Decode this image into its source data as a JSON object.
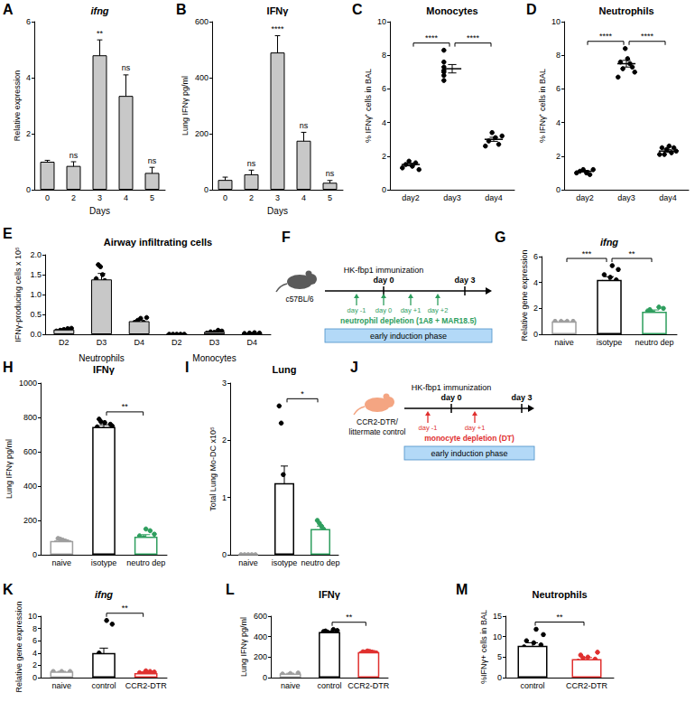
{
  "chart_data": [
    {
      "panel": "A",
      "type": "bar",
      "title": "ifng",
      "x_label": "Days",
      "y_label": "Relative expression",
      "categories": [
        "0",
        "2",
        "3",
        "4",
        "5"
      ],
      "values": [
        1.0,
        0.85,
        4.8,
        3.35,
        0.6
      ],
      "errors": [
        0.05,
        0.15,
        0.55,
        0.75,
        0.2
      ],
      "color": "#c8c8c8",
      "ylim": [
        0,
        6
      ],
      "yticks": [
        0,
        2,
        4,
        6
      ],
      "annotations": [
        {
          "category": "2",
          "text": "ns"
        },
        {
          "category": "3",
          "text": "**"
        },
        {
          "category": "4",
          "text": "ns"
        },
        {
          "category": "5",
          "text": "ns"
        }
      ]
    },
    {
      "panel": "B",
      "type": "bar",
      "title": "IFNγ",
      "x_label": "Days",
      "y_label": "Lung IFNγ pg/ml",
      "categories": [
        "0",
        "2",
        "3",
        "4",
        "5"
      ],
      "values": [
        35,
        55,
        490,
        175,
        25
      ],
      "errors": [
        10,
        15,
        60,
        30,
        8
      ],
      "color": "#c8c8c8",
      "ylim": [
        0,
        600
      ],
      "yticks": [
        0,
        200,
        400,
        600
      ],
      "annotations": [
        {
          "category": "2",
          "text": "ns"
        },
        {
          "category": "3",
          "text": "****"
        },
        {
          "category": "4",
          "text": "ns"
        },
        {
          "category": "5",
          "text": "ns"
        }
      ]
    },
    {
      "panel": "C",
      "type": "scatter",
      "title": "Monocytes",
      "y_label": "% IFNγ⁺ cells in BAL",
      "categories": [
        "day2",
        "day3",
        "day4"
      ],
      "values": [
        1.5,
        7.2,
        3.0
      ],
      "errors": [
        0.08,
        0.25,
        0.12
      ],
      "points": [
        [
          1.3,
          1.5,
          1.7,
          1.4,
          1.6,
          1.2
        ],
        [
          6.5,
          7.0,
          7.3,
          8.3,
          6.8,
          7.6,
          7.1
        ],
        [
          2.6,
          2.9,
          3.4,
          3.1,
          2.7,
          3.2
        ]
      ],
      "ylim": [
        0,
        10
      ],
      "yticks": [
        0,
        2,
        4,
        6,
        8,
        10
      ],
      "comparisons": [
        {
          "from": "day2",
          "to": "day3",
          "text": "****"
        },
        {
          "from": "day3",
          "to": "day4",
          "text": "****"
        }
      ]
    },
    {
      "panel": "D",
      "type": "scatter",
      "title": "Neutrophils",
      "y_label": "% IFNγ⁺ cells in BAL",
      "categories": [
        "day2",
        "day3",
        "day4"
      ],
      "values": [
        1.1,
        7.5,
        2.3
      ],
      "errors": [
        0.05,
        0.2,
        0.08
      ],
      "points": [
        [
          1.0,
          1.1,
          1.2,
          1.0,
          0.9,
          1.2
        ],
        [
          6.7,
          7.0,
          7.3,
          7.5,
          7.8,
          8.4,
          7.2,
          7.6
        ],
        [
          2.1,
          2.3,
          2.5,
          2.2,
          2.6,
          2.4,
          2.1,
          2.5
        ]
      ],
      "ylim": [
        0,
        10
      ],
      "yticks": [
        0,
        2,
        4,
        6,
        8,
        10
      ],
      "comparisons": [
        {
          "from": "day2",
          "to": "day3",
          "text": "****"
        },
        {
          "from": "day3",
          "to": "day4",
          "text": "****"
        }
      ]
    },
    {
      "panel": "E",
      "type": "bar",
      "title": "Airway infiltrating cells",
      "y_label": "IFNγ-producing cells x 10⁵",
      "categories": [
        "D2",
        "D3",
        "D4",
        "D2",
        "D3",
        "D4"
      ],
      "group_labels": [
        "Neutrophils",
        "Monocytes"
      ],
      "values": [
        0.12,
        1.38,
        0.33,
        0.0,
        0.06,
        0.03
      ],
      "errors": [
        0.02,
        0.15,
        0.03,
        0.0,
        0.02,
        0.01
      ],
      "points": [
        [
          0.08,
          0.12,
          0.15,
          0.1,
          0.14
        ],
        [
          0.95,
          1.1,
          1.2,
          1.35,
          1.5,
          1.7,
          1.75,
          1.4
        ],
        [
          0.25,
          0.3,
          0.35,
          0.4,
          0.3,
          0.42
        ],
        [
          0,
          0,
          0,
          0,
          0
        ],
        [
          0.03,
          0.05,
          0.08,
          0.06,
          0.1
        ],
        [
          0.02,
          0.03,
          0.04,
          0.03
        ]
      ],
      "color": "#c8c8c8",
      "ylim": [
        0,
        2
      ],
      "yticks": [
        {
          "value": 0,
          "label": "0.0"
        },
        {
          "value": 0.5,
          "label": "0.5"
        },
        {
          "value": 1,
          "label": "1.0"
        },
        {
          "value": 1.5,
          "label": "1.5"
        },
        {
          "value": 2,
          "label": "2.0"
        }
      ]
    },
    {
      "panel": "G",
      "type": "bar",
      "title": "ifng",
      "y_label": "Relative gene expression",
      "categories": [
        "naive",
        "isotype",
        "neutro dep"
      ],
      "values": [
        1.0,
        4.2,
        1.75
      ],
      "errors": [
        0.03,
        0.25,
        0.13
      ],
      "points": [
        [
          1,
          1,
          1,
          1
        ],
        [
          3.2,
          3.5,
          3.8,
          4.0,
          4.2,
          4.4,
          4.6,
          5.0,
          5.3,
          3.9
        ],
        [
          1.2,
          1.4,
          1.5,
          1.7,
          1.8,
          2.0,
          2.1,
          1.6,
          1.9
        ]
      ],
      "colors": [
        "#9e9e9e",
        "#000000",
        "#2e9e5e"
      ],
      "ylim": [
        0,
        6
      ],
      "yticks": [
        0,
        2,
        4,
        6
      ],
      "comparisons": [
        {
          "from": "naive",
          "to": "isotype",
          "text": "***"
        },
        {
          "from": "isotype",
          "to": "neutro dep",
          "text": "**"
        }
      ]
    },
    {
      "panel": "H",
      "type": "bar",
      "title": "IFNγ",
      "y_label": "Lung IFNγ pg/ml",
      "categories": [
        "naive",
        "isotype",
        "neutro dep"
      ],
      "values": [
        80,
        745,
        105
      ],
      "errors": [
        5,
        12,
        12
      ],
      "points": [
        [
          60,
          70,
          75,
          80,
          85,
          90,
          95,
          70
        ],
        [
          690,
          710,
          730,
          745,
          760,
          770,
          790,
          750,
          720,
          775
        ],
        [
          60,
          80,
          90,
          100,
          110,
          120,
          140,
          150,
          85
        ]
      ],
      "colors": [
        "#9e9e9e",
        "#000000",
        "#2e9e5e"
      ],
      "ylim": [
        0,
        1000
      ],
      "yticks": [
        0,
        200,
        400,
        600,
        800,
        1000
      ],
      "comparisons": [
        {
          "from": "isotype",
          "to": "neutro dep",
          "text": "**"
        }
      ]
    },
    {
      "panel": "I",
      "type": "bar",
      "title": "Lung",
      "y_label": "Total Lung Mo-DC x10⁵",
      "categories": [
        "naive",
        "isotype",
        "neutro dep"
      ],
      "values": [
        0,
        1.25,
        0.45
      ],
      "errors": [
        0,
        0.3,
        0.05
      ],
      "points": [
        [
          0,
          0,
          0,
          0,
          0
        ],
        [
          0.5,
          0.6,
          0.8,
          1.0,
          1.1,
          1.4,
          2.3,
          2.6
        ],
        [
          0.3,
          0.35,
          0.4,
          0.45,
          0.5,
          0.55,
          0.6,
          0.4
        ]
      ],
      "colors": [
        "#9e9e9e",
        "#000000",
        "#2e9e5e"
      ],
      "ylim": [
        0,
        3
      ],
      "yticks": [
        0,
        1,
        2,
        3
      ],
      "comparisons": [
        {
          "from": "isotype",
          "to": "neutro dep",
          "text": "*"
        }
      ]
    },
    {
      "panel": "K",
      "type": "bar",
      "title": "ifng",
      "y_label": "Relative gene expression",
      "categories": [
        "naive",
        "control",
        "CCR2-DTR"
      ],
      "values": [
        1.0,
        4.0,
        0.75
      ],
      "errors": [
        0.02,
        0.8,
        0.1
      ],
      "points": [
        [
          1,
          1,
          1
        ],
        [
          1.5,
          2.0,
          2.5,
          2.8,
          3.0,
          3.5,
          4.0,
          8.7,
          9.3,
          2.1
        ],
        [
          0.3,
          0.5,
          0.6,
          0.7,
          0.8,
          0.9,
          1.0,
          1.1,
          0.6
        ]
      ],
      "colors": [
        "#9e9e9e",
        "#000000",
        "#e0302f"
      ],
      "ylim": [
        0,
        10
      ],
      "yticks": [
        0,
        2,
        4,
        6,
        8,
        10
      ],
      "comparisons": [
        {
          "from": "control",
          "to": "CCR2-DTR",
          "text": "**"
        }
      ]
    },
    {
      "panel": "L",
      "type": "bar",
      "title": "IFNγ",
      "y_label": "Lung IFNγ pg/ml",
      "categories": [
        "naive",
        "control",
        "CCR2-DTR"
      ],
      "values": [
        40,
        445,
        250
      ],
      "errors": [
        3,
        6,
        3
      ],
      "points": [
        [
          35,
          40,
          45
        ],
        [
          420,
          430,
          440,
          445,
          450,
          460,
          470,
          435,
          455
        ],
        [
          235,
          240,
          245,
          250,
          255,
          260,
          248,
          252
        ]
      ],
      "colors": [
        "#9e9e9e",
        "#000000",
        "#e0302f"
      ],
      "ylim": [
        0,
        600
      ],
      "yticks": [
        0,
        200,
        400,
        600
      ],
      "comparisons": [
        {
          "from": "control",
          "to": "CCR2-DTR",
          "text": "**"
        }
      ]
    },
    {
      "panel": "M",
      "type": "bar",
      "title": "Neutrophils",
      "y_label": "%IFNγ+ cells in BAL",
      "categories": [
        "control",
        "CCR2-DTR"
      ],
      "values": [
        7.8,
        4.5
      ],
      "errors": [
        0.7,
        0.4
      ],
      "points": [
        [
          5.5,
          6.5,
          7.0,
          7.5,
          8.0,
          8.5,
          9.0,
          10.5,
          11.8,
          6.0
        ],
        [
          2.5,
          3.5,
          3.8,
          4.0,
          4.5,
          5.0,
          5.5,
          6.2,
          3.0,
          4.8
        ]
      ],
      "colors": [
        "#000000",
        "#e0302f"
      ],
      "ylim": [
        0,
        15
      ],
      "yticks": [
        0,
        5,
        10,
        15
      ],
      "comparisons": [
        {
          "from": "control",
          "to": "CCR2-DTR",
          "text": "**"
        }
      ]
    }
  ],
  "diagrams": [
    {
      "panel": "F",
      "mouse": [
        "c57BL/6"
      ],
      "milestones": [
        {
          "day": 0,
          "labels": [
            "HK-fbp1 immunization",
            "day 0"
          ]
        },
        {
          "day": 3,
          "labels": [
            "day 3"
          ]
        }
      ],
      "treatment_days": [
        -1,
        0,
        1,
        2
      ],
      "treatment_labels": [
        "day -1",
        "day 0",
        "day +1",
        "day +2"
      ],
      "treatment": "neutrophil depletion (1A8 + MAR18.5)",
      "color": "#2e9e5e",
      "phase": "early induction phase"
    },
    {
      "panel": "J",
      "mouse": [
        "CCR2-DTR/",
        "littermate control"
      ],
      "milestones": [
        {
          "day": 0,
          "labels": [
            "HK-fbp1 immunization",
            "day 0"
          ]
        },
        {
          "day": 3,
          "labels": [
            "day 3"
          ]
        }
      ],
      "treatment_days": [
        -1,
        1
      ],
      "treatment_labels": [
        "day -1",
        "day +1"
      ],
      "treatment": "monocyte depletion (DT)",
      "color": "#e0302f",
      "phase": "early induction phase"
    }
  ]
}
